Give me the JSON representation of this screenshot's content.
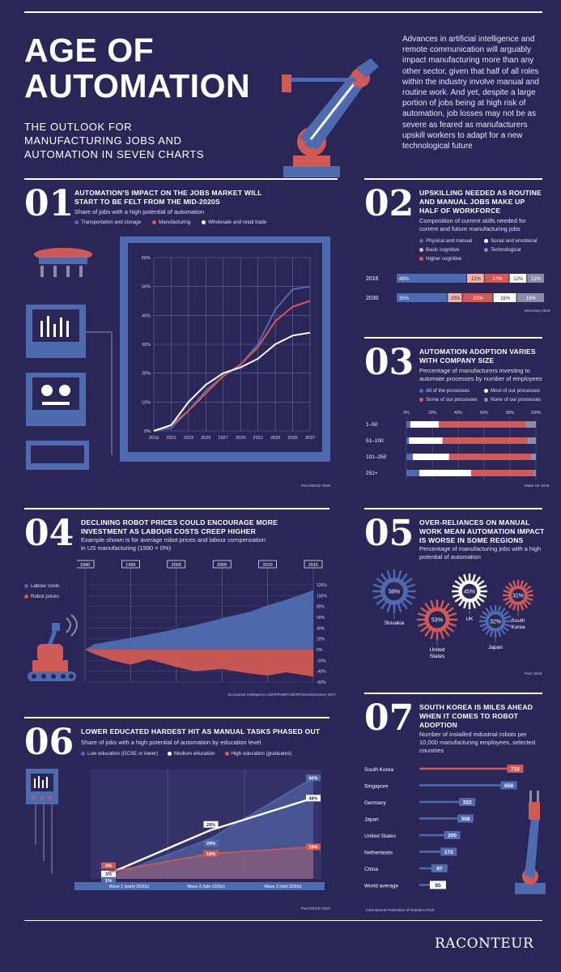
{
  "header": {
    "title_line1": "AGE OF",
    "title_line2": "AUTOMATION",
    "subtitle": "THE OUTLOOK FOR MANUFACTURING JOBS AND AUTOMATION IN SEVEN CHARTS",
    "intro": "Advances in artificial intelligence and remote communication will arguably impact manufacturing more than any other sector, given that half of all roles within the industry involve manual and routine work. And yet, despite a large portion of jobs being at high risk of automation, job losses may not be as severe as feared as manufacturers upskill workers to adapt for a new technological future"
  },
  "colors": {
    "background": "#2a2758",
    "blue": "#4f6bb0",
    "red": "#d05a55",
    "white": "#ffffff",
    "grey": "#8f8ca8",
    "peach": "#f1b5a8"
  },
  "sections": {
    "s1": {
      "num": "01",
      "title": "AUTOMATION'S IMPACT ON THE JOBS MARKET WILL START TO BE FELT FROM THE MID-2020S",
      "sub": "Share of jobs with a high potential of automation",
      "source": "PwC/OECD 2018"
    },
    "s2": {
      "num": "02",
      "title": "UPSKILLING NEEDED AS ROUTINE AND MANUAL JOBS MAKE UP HALF OF WORKFORCE",
      "sub": "Composition of current skills needed for current and future manufacturing jobs",
      "source": "McKinsey 2018"
    },
    "s3": {
      "num": "03",
      "title": "AUTOMATION ADOPTION VARIES WITH COMPANY SIZE",
      "sub": "Percentage of manufacturers investing to automate processes by number of employees",
      "source": "Make UK 2018"
    },
    "s4": {
      "num": "04",
      "title": "DECLINING ROBOT PRICES COULD ENCOURAGE MORE INVESTMENT AS LABOUR COSTS CREEP HIGHER",
      "sub": "Example shown is for average robot prices and labour compensation in US manufacturing (1990 = 0%)",
      "source": "Economist Intelligence Unit/IFR/IMF/AD/IRF/SSA/McKinsey 2017"
    },
    "s5": {
      "num": "05",
      "title": "OVER-RELIANCES ON MANUAL WORK MEAN AUTOMATION IMPACT IS WORSE IN SOME REGIONS",
      "sub": "Percentage of manufacturing jobs with a high potential of automation",
      "source": "PwC 2018"
    },
    "s6": {
      "num": "06",
      "title": "LOWER EDUCATED HARDEST HIT AS MANUAL TASKS PHASED OUT",
      "sub": "Share of jobs with a high potential of automation by education level",
      "source": "PwC/OECD 2018"
    },
    "s7": {
      "num": "07",
      "title": "SOUTH KOREA IS MILES AHEAD WHEN IT COMES TO ROBOT ADOPTION",
      "sub": "Number of installed industrial robots per 10,000 manufacturing employees, selected countries",
      "source": "International Federation of Robotics 2018"
    }
  },
  "logo": "RACONTEUR",
  "chart_data": [
    {
      "id": "c1",
      "type": "line",
      "x": [
        "2019",
        "2021",
        "2023",
        "2025",
        "2027",
        "2029",
        "2031",
        "2033",
        "2035",
        "2037"
      ],
      "ylim": [
        0,
        60
      ],
      "yticks": [
        "0%",
        "10%",
        "20%",
        "30%",
        "40%",
        "50%",
        "60%"
      ],
      "series": [
        {
          "name": "Transportation and storage",
          "color": "#4f6bb0",
          "values": [
            0,
            1,
            7,
            14,
            19,
            23,
            30,
            42,
            49,
            50
          ]
        },
        {
          "name": "Manufacturing",
          "color": "#d05a55",
          "values": [
            0,
            2,
            7,
            13,
            19,
            23,
            29,
            38,
            43,
            45
          ]
        },
        {
          "name": "Wholesale and retail trade",
          "color": "#ffffff",
          "values": [
            0,
            2,
            10,
            16,
            20,
            22,
            25,
            30,
            33,
            34
          ]
        }
      ]
    },
    {
      "id": "c2",
      "type": "bar",
      "legend": [
        {
          "name": "Physical and manual",
          "color": "#4f6bb0"
        },
        {
          "name": "Social and emotional",
          "color": "#ffffff"
        },
        {
          "name": "Basic cognitive",
          "color": "#f1b5a8"
        },
        {
          "name": "Technological",
          "color": "#8f8ca8"
        },
        {
          "name": "Higher cognitive",
          "color": "#d05a55"
        }
      ],
      "rows": [
        {
          "label": "2016",
          "segments": [
            {
              "v": 48,
              "label": "48%",
              "color": "#4f6bb0"
            },
            {
              "v": 12,
              "label": "12%",
              "color": "#f1b5a8"
            },
            {
              "v": 17,
              "label": "17%",
              "color": "#d05a55"
            },
            {
              "v": 12,
              "label": "12%",
              "color": "#ffffff"
            },
            {
              "v": 12,
              "label": "12%",
              "color": "#8f8ca8"
            }
          ]
        },
        {
          "label": "2030",
          "segments": [
            {
              "v": 35,
              "label": "35%",
              "color": "#4f6bb0"
            },
            {
              "v": 10,
              "label": "10%",
              "color": "#f1b5a8"
            },
            {
              "v": 21,
              "label": "21%",
              "color": "#d05a55"
            },
            {
              "v": 16,
              "label": "16%",
              "color": "#ffffff"
            },
            {
              "v": 19,
              "label": "19%",
              "color": "#8f8ca8"
            }
          ]
        }
      ]
    },
    {
      "id": "c3",
      "type": "bar",
      "xticks": [
        "0%",
        "20%",
        "40%",
        "60%",
        "80%",
        "100%"
      ],
      "legend": [
        {
          "name": "All of the processes",
          "color": "#4f6bb0"
        },
        {
          "name": "Most of our processes",
          "color": "#ffffff"
        },
        {
          "name": "Some of our processes",
          "color": "#d05a55"
        },
        {
          "name": "None of our processes",
          "color": "#8f8ca8"
        }
      ],
      "rows": [
        {
          "label": "1–50",
          "values": [
            3,
            22,
            67,
            8
          ]
        },
        {
          "label": "51–100",
          "values": [
            2,
            26,
            65,
            7
          ]
        },
        {
          "label": "101–250",
          "values": [
            5,
            28,
            63,
            4
          ]
        },
        {
          "label": "251+",
          "values": [
            10,
            40,
            48,
            2
          ]
        }
      ]
    },
    {
      "id": "c4",
      "type": "area",
      "periods": [
        "1990",
        "1995",
        "2000",
        "2005",
        "2010",
        "2015"
      ],
      "yticks": [
        "120%",
        "100%",
        "80%",
        "60%",
        "40%",
        "20%",
        "0%",
        "-20%",
        "-40%",
        "-60%"
      ],
      "ylim": [
        -60,
        120
      ],
      "series": [
        {
          "name": "Labour costs",
          "color": "#4f6bb0",
          "x": [
            1990,
            1991,
            1993,
            1995,
            1997,
            2000,
            2002,
            2005,
            2008,
            2010,
            2012,
            2015
          ],
          "values": [
            0,
            10,
            16,
            22,
            28,
            38,
            45,
            58,
            70,
            82,
            92,
            110
          ]
        },
        {
          "name": "Robot prices",
          "color": "#d05a55",
          "x": [
            1990,
            1991,
            1993,
            1995,
            1997,
            2000,
            2002,
            2005,
            2008,
            2010,
            2012,
            2015
          ],
          "values": [
            0,
            -8,
            -20,
            -28,
            -18,
            -32,
            -40,
            -36,
            -44,
            -48,
            -42,
            -50
          ]
        }
      ]
    },
    {
      "id": "c5",
      "type": "pie",
      "items": [
        {
          "label": "Slovakia",
          "value": 58,
          "text": "58%"
        },
        {
          "label": "United States",
          "value": 53,
          "text": "53%"
        },
        {
          "label": "UK",
          "value": 45,
          "text": "45%"
        },
        {
          "label": "Japan",
          "value": 32,
          "text": "32%"
        },
        {
          "label": "South Korea",
          "value": 31,
          "text": "31%"
        }
      ]
    },
    {
      "id": "c6",
      "type": "line",
      "categories": [
        "Wave 1 (early-2020s)",
        "Wave 2 (late-2020s)",
        "Wave 3 (mid 2030s)"
      ],
      "legend": [
        {
          "name": "Low education (GCSE or lower)",
          "color": "#4f6bb0"
        },
        {
          "name": "Medium education",
          "color": "#ffffff"
        },
        {
          "name": "High education (graduates)",
          "color": "#d05a55"
        }
      ],
      "series": [
        {
          "name": "Low education (GCSE or lower)",
          "color": "#4f6bb0",
          "values": [
            1,
            24,
            60
          ],
          "labels": [
            "1%",
            "24%",
            "60%"
          ]
        },
        {
          "name": "Medium education",
          "color": "#ffffff",
          "values": [
            3,
            29,
            48
          ],
          "labels": [
            "3%",
            "29%",
            "48%"
          ]
        },
        {
          "name": "High education (graduates)",
          "color": "#d05a55",
          "values": [
            4,
            15,
            19
          ],
          "labels": [
            "4%",
            "15%",
            "19%"
          ]
        }
      ]
    },
    {
      "id": "c7",
      "type": "bar",
      "categories": [
        "South Korea",
        "Singapore",
        "Germany",
        "Japan",
        "United States",
        "Netherlands",
        "China",
        "World average"
      ],
      "values": [
        710,
        658,
        322,
        308,
        200,
        172,
        97,
        85
      ]
    }
  ]
}
